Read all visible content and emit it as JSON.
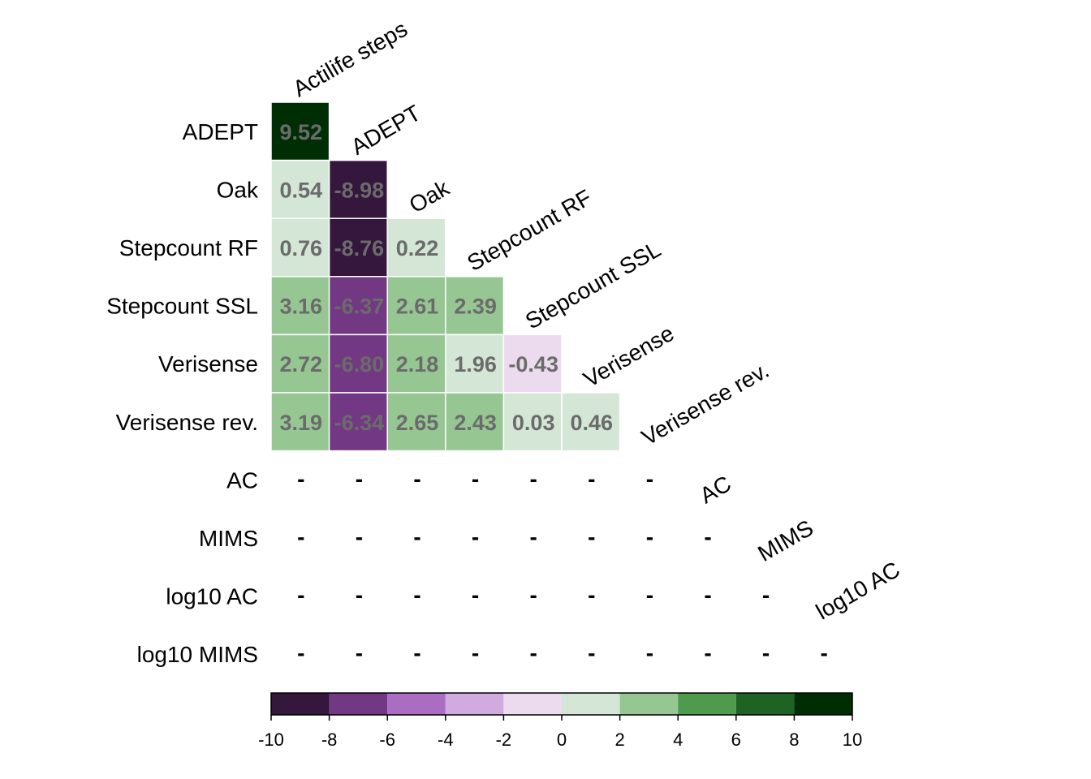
{
  "chart_data": {
    "type": "heatmap",
    "layout": "lower-triangle",
    "rows": [
      "ADEPT",
      "Oak",
      "Stepcount RF",
      "Stepcount SSL",
      "Verisense",
      "Verisense rev.",
      "AC",
      "MIMS",
      "log10 AC",
      "log10 MIMS"
    ],
    "columns": [
      "Actilife steps",
      "ADEPT",
      "Oak",
      "Stepcount RF",
      "Stepcount SSL",
      "Verisense",
      "Verisense rev.",
      "AC",
      "MIMS",
      "log10 AC"
    ],
    "values": [
      [
        9.52
      ],
      [
        0.54,
        -8.98
      ],
      [
        0.76,
        -8.76,
        0.22
      ],
      [
        3.16,
        -6.37,
        2.61,
        2.39
      ],
      [
        2.72,
        -6.8,
        2.18,
        1.96,
        -0.43
      ],
      [
        3.19,
        -6.34,
        2.65,
        2.43,
        0.03,
        0.46
      ],
      [
        null,
        null,
        null,
        null,
        null,
        null,
        null
      ],
      [
        null,
        null,
        null,
        null,
        null,
        null,
        null,
        null
      ],
      [
        null,
        null,
        null,
        null,
        null,
        null,
        null,
        null,
        null
      ],
      [
        null,
        null,
        null,
        null,
        null,
        null,
        null,
        null,
        null,
        null
      ]
    ],
    "cell_labels": [
      [
        "9.52"
      ],
      [
        "0.54",
        "-8.98"
      ],
      [
        "0.76",
        "-8.76",
        "0.22"
      ],
      [
        "3.16",
        "-6.37",
        "2.61",
        "2.39"
      ],
      [
        "2.72",
        "-6.80",
        "2.18",
        "1.96",
        "-0.43"
      ],
      [
        "3.19",
        "-6.34",
        "2.65",
        "2.43",
        "0.03",
        "0.46"
      ],
      [
        "-",
        "-",
        "-",
        "-",
        "-",
        "-",
        "-"
      ],
      [
        "-",
        "-",
        "-",
        "-",
        "-",
        "-",
        "-",
        "-"
      ],
      [
        "-",
        "-",
        "-",
        "-",
        "-",
        "-",
        "-",
        "-",
        "-"
      ],
      [
        "-",
        "-",
        "-",
        "-",
        "-",
        "-",
        "-",
        "-",
        "-",
        "-"
      ]
    ],
    "color_scale": {
      "range": [
        -10,
        10
      ],
      "breaks": [
        -10,
        -8,
        -6,
        -4,
        -2,
        0,
        2,
        4,
        6,
        8,
        10
      ],
      "tick_labels": [
        "-10",
        "-8",
        "-6",
        "-4",
        "-2",
        "0",
        "2",
        "4",
        "6",
        "8",
        "10"
      ],
      "colors": [
        "#35163d",
        "#723883",
        "#aa6dc1",
        "#d1aadf",
        "#ecdaee",
        "#d4e6d6",
        "#96c793",
        "#4f9b4e",
        "#1f6324",
        "#002e04"
      ]
    },
    "legend_placement": "bottom",
    "grid": false
  }
}
